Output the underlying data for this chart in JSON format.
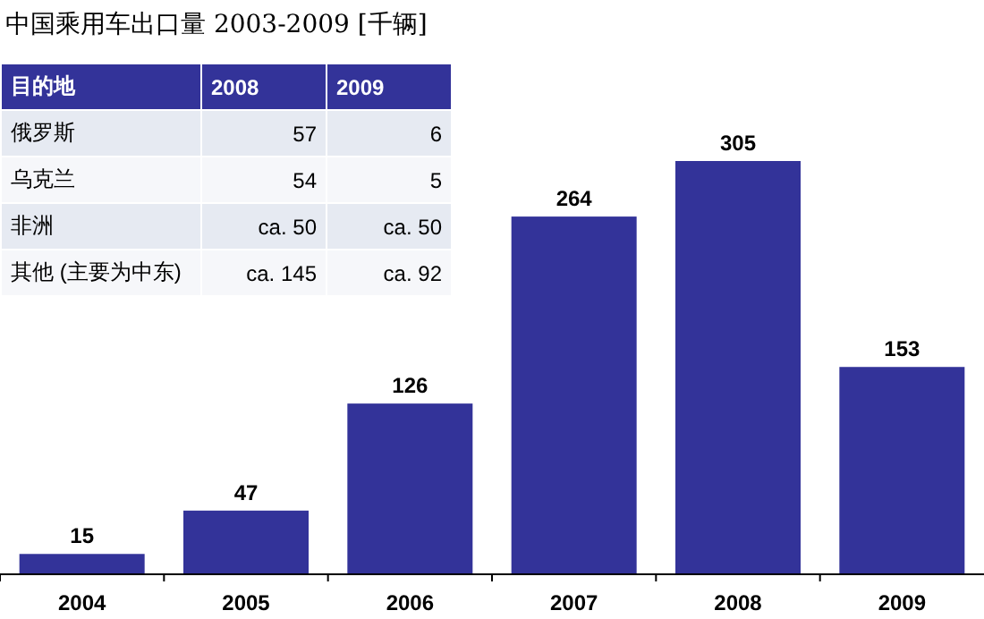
{
  "chart_data": [
    {
      "type": "bar",
      "title": "中国乘用车出口量 2003-2009 [千辆]",
      "categories": [
        "2004",
        "2005",
        "2006",
        "2007",
        "2008",
        "2009"
      ],
      "values": [
        15,
        47,
        126,
        264,
        305,
        153
      ],
      "color": "#333399",
      "data_labels": true
    },
    {
      "type": "other",
      "annotations": [
        "目的地",
        "2008",
        "2009",
        "俄罗斯",
        "57",
        "6",
        "乌克兰",
        "54",
        "5",
        "非洲",
        "ca. 50",
        "ca. 50",
        "其他 (主要为中东)",
        "ca. 145",
        "ca. 92"
      ]
    }
  ]
}
